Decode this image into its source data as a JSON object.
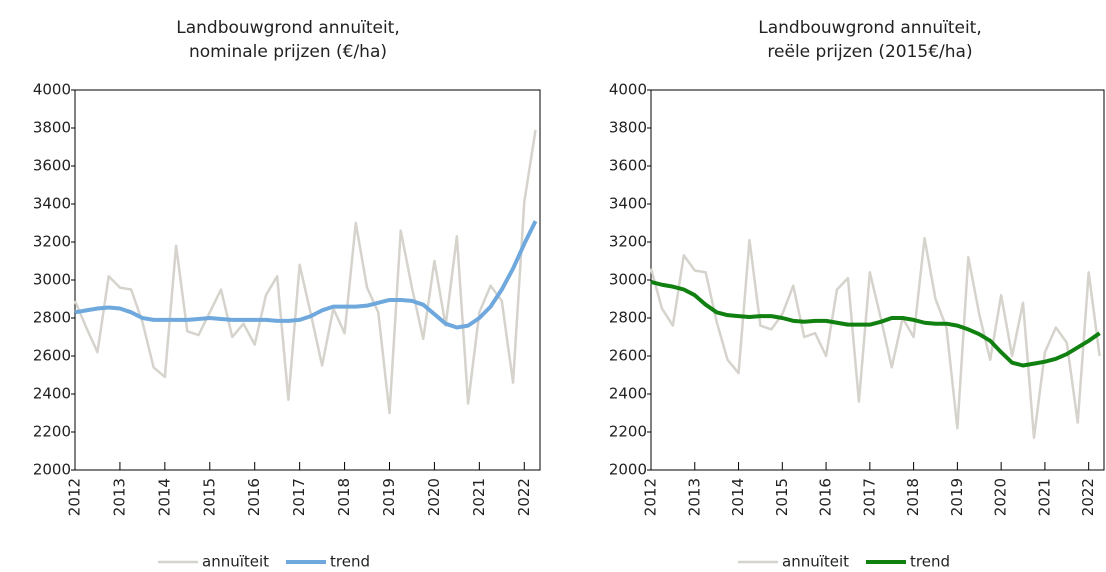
{
  "chart_data": [
    {
      "type": "line",
      "title": [
        "Landbouwgrond annuïteit,",
        "nominale prijzen (€/ha)"
      ],
      "x": [
        2012,
        2012.25,
        2012.5,
        2012.75,
        2013,
        2013.25,
        2013.5,
        2013.75,
        2014,
        2014.25,
        2014.5,
        2014.75,
        2015,
        2015.25,
        2015.5,
        2015.75,
        2016,
        2016.25,
        2016.5,
        2016.75,
        2017,
        2017.25,
        2017.5,
        2017.75,
        2018,
        2018.25,
        2018.5,
        2018.75,
        2019,
        2019.25,
        2019.5,
        2019.75,
        2020,
        2020.25,
        2020.5,
        2020.75,
        2021,
        2021.25,
        2021.5,
        2021.75,
        2022,
        2022.25
      ],
      "series": [
        {
          "name": "annuïteit",
          "color": "#d6d3cc",
          "values": [
            2890,
            2750,
            2620,
            3020,
            2960,
            2950,
            2780,
            2540,
            2490,
            3180,
            2730,
            2710,
            2830,
            2950,
            2700,
            2770,
            2660,
            2920,
            3020,
            2370,
            3080,
            2820,
            2550,
            2850,
            2720,
            3300,
            2960,
            2830,
            2300,
            3260,
            2960,
            2690,
            3100,
            2760,
            3230,
            2350,
            2830,
            2970,
            2890,
            2460,
            3410,
            3790
          ]
        },
        {
          "name": "trend",
          "color": "#6fa8dc",
          "values": [
            2830,
            2840,
            2850,
            2855,
            2850,
            2830,
            2800,
            2790,
            2790,
            2790,
            2790,
            2795,
            2800,
            2795,
            2790,
            2790,
            2790,
            2790,
            2785,
            2785,
            2790,
            2810,
            2840,
            2860,
            2860,
            2860,
            2865,
            2880,
            2895,
            2895,
            2890,
            2870,
            2820,
            2770,
            2750,
            2760,
            2800,
            2860,
            2950,
            3060,
            3190,
            3310
          ]
        }
      ],
      "xlim": [
        2012,
        2022.35
      ],
      "xticks": [
        2012,
        2013,
        2014,
        2015,
        2016,
        2017,
        2018,
        2019,
        2020,
        2021,
        2022
      ],
      "ylim": [
        2000,
        4000
      ],
      "yticks": [
        2000,
        2200,
        2400,
        2600,
        2800,
        3000,
        3200,
        3400,
        3600,
        3800,
        4000
      ]
    },
    {
      "type": "line",
      "title": [
        "Landbouwgrond annuïteit,",
        "reële prijzen (2015€/ha)"
      ],
      "x": [
        2012,
        2012.25,
        2012.5,
        2012.75,
        2013,
        2013.25,
        2013.5,
        2013.75,
        2014,
        2014.25,
        2014.5,
        2014.75,
        2015,
        2015.25,
        2015.5,
        2015.75,
        2016,
        2016.25,
        2016.5,
        2016.75,
        2017,
        2017.25,
        2017.5,
        2017.75,
        2018,
        2018.25,
        2018.5,
        2018.75,
        2019,
        2019.25,
        2019.5,
        2019.75,
        2020,
        2020.25,
        2020.5,
        2020.75,
        2021,
        2021.25,
        2021.5,
        2021.75,
        2022,
        2022.25
      ],
      "series": [
        {
          "name": "annuïteit",
          "color": "#d6d3cc",
          "values": [
            3060,
            2850,
            2760,
            3130,
            3050,
            3040,
            2780,
            2580,
            2510,
            3210,
            2760,
            2740,
            2820,
            2970,
            2700,
            2720,
            2600,
            2950,
            3010,
            2360,
            3040,
            2800,
            2540,
            2800,
            2700,
            3220,
            2900,
            2750,
            2220,
            3120,
            2820,
            2580,
            2920,
            2600,
            2880,
            2170,
            2620,
            2750,
            2670,
            2250,
            3040,
            2600
          ]
        },
        {
          "name": "trend",
          "color": "#108010",
          "values": [
            2990,
            2975,
            2965,
            2950,
            2920,
            2870,
            2830,
            2815,
            2810,
            2805,
            2810,
            2810,
            2800,
            2785,
            2780,
            2785,
            2785,
            2775,
            2765,
            2765,
            2765,
            2780,
            2800,
            2800,
            2790,
            2775,
            2770,
            2770,
            2760,
            2740,
            2715,
            2680,
            2620,
            2565,
            2550,
            2560,
            2570,
            2585,
            2610,
            2645,
            2680,
            2720
          ]
        }
      ],
      "xlim": [
        2012,
        2022.35
      ],
      "xticks": [
        2012,
        2013,
        2014,
        2015,
        2016,
        2017,
        2018,
        2019,
        2020,
        2021,
        2022
      ],
      "ylim": [
        2000,
        4000
      ],
      "yticks": [
        2000,
        2200,
        2400,
        2600,
        2800,
        3000,
        3200,
        3400,
        3600,
        3800,
        4000
      ]
    }
  ]
}
